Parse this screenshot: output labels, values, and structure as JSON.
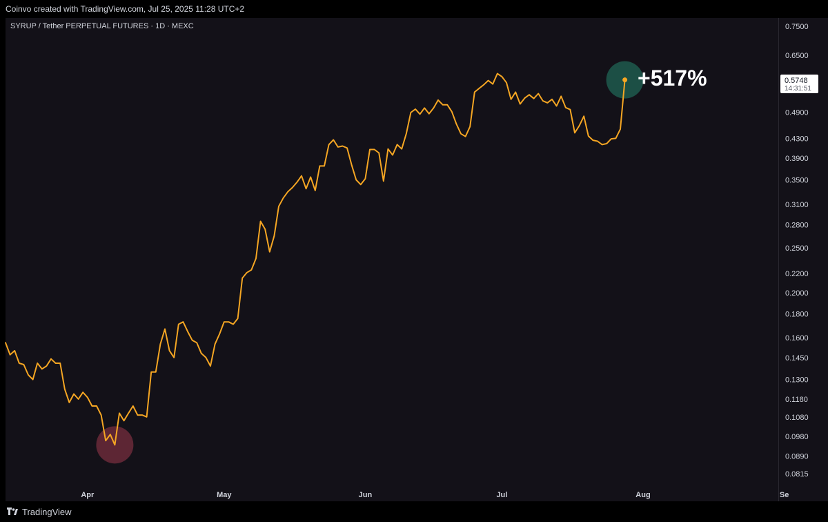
{
  "header": {
    "credit": "Coinvo created with TradingView.com, Jul 25, 2025 11:28 UTC+2"
  },
  "chart_info": {
    "symbol_line": "SYRUP / Tether PERPETUAL FUTURES · 1D · MEXC"
  },
  "annotation": {
    "change_label": "+517%"
  },
  "last_price": {
    "price": "0.5748",
    "countdown": "14:31:51"
  },
  "footer": {
    "brand": "TradingView"
  },
  "colors": {
    "line": "#f5a623",
    "low_marker": "#6b2a3a",
    "high_marker": "#1e5a4e",
    "background": "#131118"
  },
  "chart_data": {
    "type": "line",
    "title": "SYRUP / Tether PERPETUAL FUTURES · 1D · MEXC",
    "yscale": "log",
    "ylim": [
      0.078,
      0.78
    ],
    "grid": false,
    "x_start_date": "2025-03-14",
    "x_tick_labels": [
      {
        "label": "Apr",
        "date": "2025-04-01"
      },
      {
        "label": "May",
        "date": "2025-05-01"
      },
      {
        "label": "Jun",
        "date": "2025-06-01"
      },
      {
        "label": "Jul",
        "date": "2025-07-01"
      },
      {
        "label": "Aug",
        "date": "2025-08-01"
      },
      {
        "label": "Se",
        "date": "2025-09-01"
      }
    ],
    "y_ticks": [
      "0.7500",
      "0.6500",
      "0.5700",
      "0.4900",
      "0.4300",
      "0.3900",
      "0.3500",
      "0.3100",
      "0.2800",
      "0.2500",
      "0.2200",
      "0.2000",
      "0.1800",
      "0.1600",
      "0.1450",
      "0.1300",
      "0.1180",
      "0.1080",
      "0.0980",
      "0.0890",
      "0.0815"
    ],
    "series": [
      {
        "name": "SYRUP/USDT",
        "values": [
          0.156,
          0.147,
          0.15,
          0.141,
          0.14,
          0.133,
          0.13,
          0.141,
          0.137,
          0.139,
          0.144,
          0.141,
          0.141,
          0.124,
          0.116,
          0.121,
          0.118,
          0.122,
          0.119,
          0.114,
          0.114,
          0.109,
          0.096,
          0.099,
          0.094,
          0.11,
          0.106,
          0.11,
          0.114,
          0.109,
          0.109,
          0.108,
          0.135,
          0.135,
          0.155,
          0.167,
          0.15,
          0.145,
          0.171,
          0.173,
          0.165,
          0.158,
          0.156,
          0.148,
          0.145,
          0.139,
          0.155,
          0.163,
          0.173,
          0.173,
          0.171,
          0.176,
          0.215,
          0.221,
          0.224,
          0.237,
          0.285,
          0.274,
          0.245,
          0.265,
          0.307,
          0.32,
          0.33,
          0.337,
          0.346,
          0.357,
          0.335,
          0.355,
          0.332,
          0.375,
          0.375,
          0.417,
          0.427,
          0.412,
          0.414,
          0.41,
          0.377,
          0.35,
          0.342,
          0.352,
          0.407,
          0.407,
          0.4,
          0.348,
          0.408,
          0.396,
          0.417,
          0.408,
          0.44,
          0.489,
          0.497,
          0.485,
          0.5,
          0.486,
          0.5,
          0.52,
          0.508,
          0.508,
          0.491,
          0.462,
          0.44,
          0.434,
          0.456,
          0.541,
          0.551,
          0.561,
          0.573,
          0.563,
          0.593,
          0.584,
          0.567,
          0.522,
          0.541,
          0.51,
          0.525,
          0.534,
          0.524,
          0.537,
          0.518,
          0.513,
          0.522,
          0.505,
          0.53,
          0.501,
          0.496,
          0.442,
          0.458,
          0.48,
          0.435,
          0.426,
          0.424,
          0.417,
          0.419,
          0.429,
          0.43,
          0.45,
          0.5748
        ]
      }
    ],
    "low_marker_value": 0.094,
    "high_marker_value": 0.5748
  }
}
